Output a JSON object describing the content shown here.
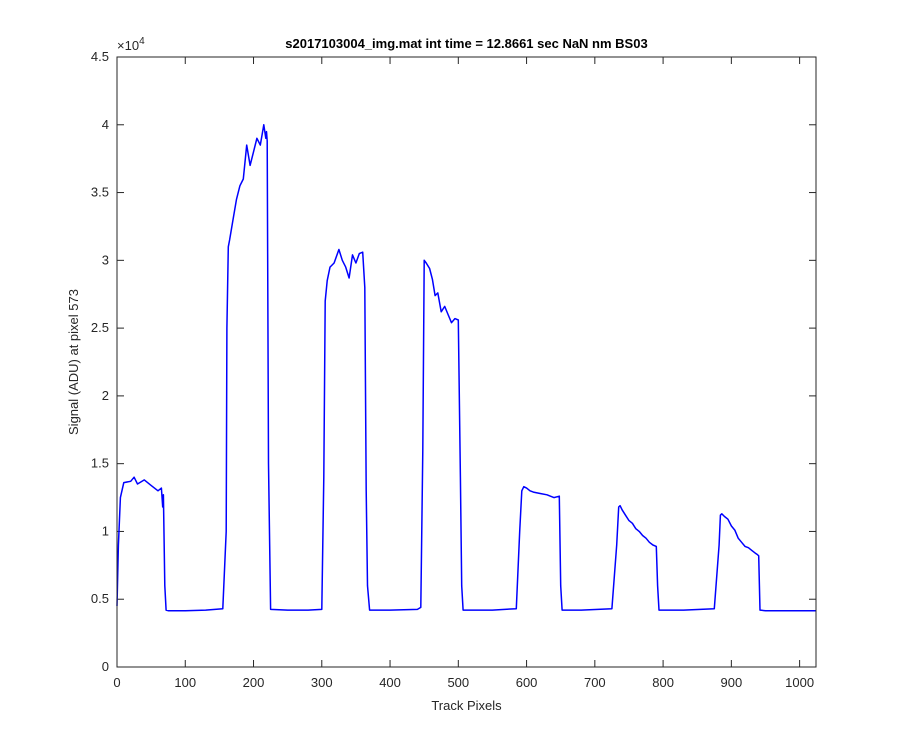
{
  "chart_data": {
    "type": "line",
    "title": "s2017103004_img.mat int time = 12.8661 sec  NaN nm BS03",
    "xlabel": "Track Pixels",
    "ylabel": "Signal (ADU) at pixel 573",
    "y_exponent_label": "×10",
    "y_exponent_power": "4",
    "xlim": [
      0,
      1024
    ],
    "ylim": [
      0,
      45000
    ],
    "x_ticks": [
      0,
      100,
      200,
      300,
      400,
      500,
      600,
      700,
      800,
      900,
      1000
    ],
    "x_tick_labels": [
      "0",
      "100",
      "200",
      "300",
      "400",
      "500",
      "600",
      "700",
      "800",
      "900",
      "1000"
    ],
    "y_ticks": [
      0,
      5000,
      10000,
      15000,
      20000,
      25000,
      30000,
      35000,
      40000,
      45000
    ],
    "y_tick_labels": [
      "0",
      "0.5",
      "1",
      "1.5",
      "2",
      "2.5",
      "3",
      "3.5",
      "4",
      "4.5"
    ],
    "grid": false,
    "line_color": "#0000ff",
    "series": [
      {
        "x": [
          0,
          2,
          5,
          10,
          20,
          25,
          30,
          40,
          50,
          60,
          65,
          67,
          68,
          70,
          72,
          75,
          100,
          130,
          155,
          160,
          161,
          163,
          165,
          170,
          175,
          180,
          185,
          190,
          195,
          200,
          205,
          210,
          215,
          218,
          219,
          220,
          222,
          225,
          250,
          280,
          300,
          303,
          305,
          308,
          312,
          318,
          325,
          330,
          335,
          340,
          345,
          350,
          355,
          360,
          363,
          365,
          367,
          370,
          400,
          440,
          445,
          448,
          450,
          453,
          458,
          462,
          466,
          470,
          475,
          480,
          485,
          490,
          495,
          500,
          503,
          505,
          507,
          510,
          550,
          585,
          590,
          593,
          596,
          600,
          605,
          610,
          620,
          630,
          640,
          648,
          650,
          652,
          655,
          680,
          725,
          732,
          735,
          737,
          740,
          745,
          750,
          755,
          760,
          765,
          770,
          775,
          780,
          785,
          790,
          792,
          794,
          797,
          830,
          875,
          882,
          884,
          886,
          890,
          895,
          900,
          905,
          910,
          915,
          920,
          925,
          930,
          935,
          938,
          940,
          942,
          950,
          1024
        ],
        "y": [
          4500,
          9000,
          12500,
          13600,
          13700,
          14000,
          13500,
          13800,
          13400,
          13000,
          13200,
          11800,
          12700,
          6000,
          4200,
          4150,
          4150,
          4200,
          4300,
          10000,
          25000,
          31000,
          31500,
          33000,
          34500,
          35500,
          36000,
          38500,
          37000,
          38000,
          39000,
          38500,
          40000,
          39000,
          39500,
          38800,
          15000,
          4250,
          4200,
          4200,
          4250,
          14000,
          27000,
          28500,
          29500,
          29800,
          30800,
          30000,
          29500,
          28700,
          30400,
          29800,
          30500,
          30600,
          28000,
          13000,
          6000,
          4200,
          4200,
          4250,
          4400,
          16000,
          30000,
          29800,
          29400,
          28600,
          27400,
          27600,
          26200,
          26600,
          26000,
          25400,
          25700,
          25600,
          14000,
          6000,
          4200,
          4200,
          4200,
          4300,
          10000,
          13000,
          13300,
          13200,
          13000,
          12900,
          12800,
          12700,
          12500,
          12600,
          6000,
          4200,
          4200,
          4200,
          4300,
          9000,
          11800,
          11900,
          11600,
          11200,
          10800,
          10600,
          10200,
          10000,
          9700,
          9500,
          9200,
          9000,
          8900,
          6000,
          4200,
          4200,
          4200,
          4300,
          9000,
          11200,
          11300,
          11100,
          10900,
          10400,
          10100,
          9500,
          9200,
          8900,
          8800,
          8600,
          8400,
          8300,
          8200,
          4200,
          4150,
          4150
        ]
      }
    ]
  }
}
